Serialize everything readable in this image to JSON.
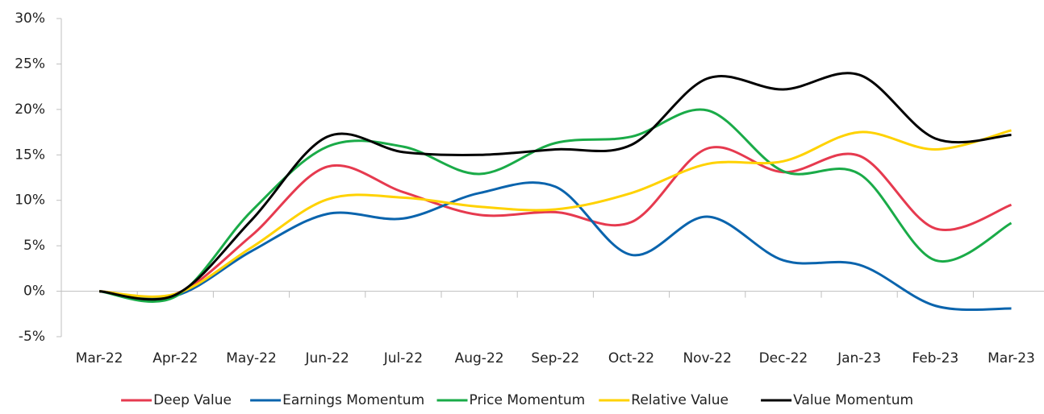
{
  "chart_data": {
    "type": "line",
    "categories": [
      "Mar-22",
      "Apr-22",
      "May-22",
      "Jun-22",
      "Jul-22",
      "Aug-22",
      "Sep-22",
      "Oct-22",
      "Nov-22",
      "Dec-22",
      "Jan-23",
      "Feb-23",
      "Mar-23"
    ],
    "series": [
      {
        "name": "Deep Value",
        "color": "#e63a4f",
        "values": [
          0,
          -0.3,
          6.1,
          13.7,
          10.9,
          8.4,
          8.7,
          7.6,
          15.7,
          13.1,
          14.9,
          6.9,
          9.5
        ]
      },
      {
        "name": "Earnings Momentum",
        "color": "#0a64ad",
        "values": [
          0,
          -0.5,
          4.4,
          8.5,
          8.0,
          10.8,
          11.5,
          4.0,
          8.2,
          3.4,
          2.9,
          -1.6,
          -1.9
        ]
      },
      {
        "name": "Price Momentum",
        "color": "#1aab48",
        "values": [
          0,
          -0.6,
          8.8,
          15.9,
          15.9,
          12.9,
          16.3,
          17.0,
          19.9,
          13.2,
          12.9,
          3.4,
          7.5
        ]
      },
      {
        "name": "Relative Value",
        "color": "#ffd200",
        "values": [
          0,
          -0.3,
          4.8,
          10.1,
          10.3,
          9.3,
          9.0,
          10.8,
          14.0,
          14.3,
          17.5,
          15.6,
          17.7
        ]
      },
      {
        "name": "Value Momentum",
        "color": "#000000",
        "values": [
          0,
          -0.4,
          7.8,
          17.0,
          15.3,
          15.0,
          15.6,
          16.1,
          23.4,
          22.2,
          23.8,
          16.8,
          17.2
        ]
      }
    ],
    "ylim": [
      -5,
      30
    ],
    "yticks": [
      {
        "value": -5,
        "label": "-5%"
      },
      {
        "value": 0,
        "label": "0%"
      },
      {
        "value": 5,
        "label": "5%"
      },
      {
        "value": 10,
        "label": "10%"
      },
      {
        "value": 15,
        "label": "15%"
      },
      {
        "value": 20,
        "label": "20%"
      },
      {
        "value": 25,
        "label": "25%"
      },
      {
        "value": 30,
        "label": "30%"
      }
    ],
    "legend": "bottom"
  }
}
